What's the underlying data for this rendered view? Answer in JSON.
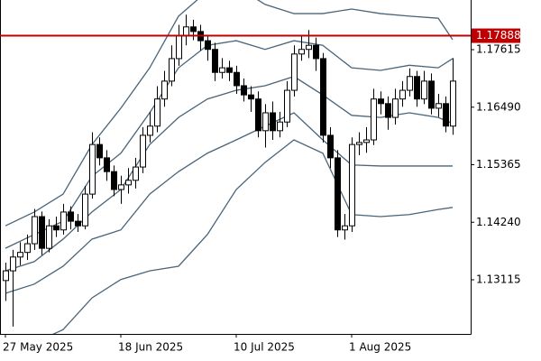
{
  "chart_data": {
    "type": "candlestick",
    "categories": [
      "27 May 2025",
      null,
      null,
      null,
      null,
      null,
      null,
      null,
      null,
      null,
      null,
      null,
      null,
      null,
      null,
      null,
      "18 Jun 2025",
      null,
      null,
      null,
      null,
      null,
      null,
      null,
      null,
      null,
      null,
      null,
      null,
      null,
      null,
      null,
      "10 Jul 2025",
      null,
      null,
      null,
      null,
      null,
      null,
      null,
      null,
      null,
      null,
      null,
      null,
      null,
      null,
      null,
      "1 Aug 2025",
      null,
      null,
      null,
      null,
      null,
      null,
      null,
      null,
      null,
      null,
      null,
      null,
      null,
      null
    ],
    "open": [
      1.131,
      1.1329,
      1.1356,
      1.1365,
      1.1382,
      1.1435,
      1.1373,
      1.1417,
      1.1409,
      1.1444,
      1.1426,
      1.1417,
      1.1479,
      1.1576,
      1.155,
      1.1523,
      1.1488,
      1.1497,
      1.1506,
      1.1532,
      1.1594,
      1.1612,
      1.1665,
      1.17,
      1.1744,
      1.1788,
      1.1806,
      1.1797,
      1.1779,
      1.1762,
      1.1717,
      1.1726,
      1.1717,
      1.1691,
      1.1673,
      1.1665,
      1.1603,
      1.1638,
      1.1603,
      1.162,
      1.1682,
      1.1753,
      1.1762,
      1.177,
      1.1744,
      1.1594,
      1.155,
      1.1409,
      1.1417,
      1.1576,
      1.158,
      1.1585,
      1.1665,
      1.1656,
      1.1629,
      1.1665,
      1.1682,
      1.1709,
      1.1665,
      1.17,
      1.1647,
      1.1656,
      1.1612
    ],
    "high": [
      1.1345,
      1.137,
      1.1385,
      1.14,
      1.145,
      1.1445,
      1.143,
      1.1435,
      1.146,
      1.1455,
      1.144,
      1.1495,
      1.16,
      1.159,
      1.1565,
      1.1535,
      1.1515,
      1.153,
      1.155,
      1.161,
      1.164,
      1.169,
      1.172,
      1.177,
      1.181,
      1.183,
      1.182,
      1.181,
      1.179,
      1.1775,
      1.1745,
      1.174,
      1.173,
      1.1705,
      1.169,
      1.168,
      1.1655,
      1.166,
      1.164,
      1.17,
      1.177,
      1.179,
      1.18,
      1.1785,
      1.1755,
      1.161,
      1.1565,
      1.144,
      1.159,
      1.16,
      1.161,
      1.1685,
      1.168,
      1.167,
      1.1685,
      1.17,
      1.1725,
      1.172,
      1.172,
      1.1715,
      1.1675,
      1.167,
      1.1745
    ],
    "low": [
      1.127,
      1.122,
      1.134,
      1.135,
      1.137,
      1.136,
      1.1365,
      1.1395,
      1.14,
      1.141,
      1.1405,
      1.141,
      1.147,
      1.1535,
      1.1505,
      1.1475,
      1.146,
      1.148,
      1.149,
      1.152,
      1.158,
      1.16,
      1.165,
      1.169,
      1.173,
      1.177,
      1.178,
      1.176,
      1.174,
      1.17,
      1.1705,
      1.17,
      1.1675,
      1.166,
      1.164,
      1.159,
      1.157,
      1.1585,
      1.159,
      1.161,
      1.167,
      1.174,
      1.1745,
      1.172,
      1.158,
      1.153,
      1.1395,
      1.139,
      1.1405,
      1.1555,
      1.156,
      1.1575,
      1.1635,
      1.1605,
      1.1615,
      1.165,
      1.167,
      1.165,
      1.1655,
      1.1635,
      1.163,
      1.16,
      1.1595
    ],
    "close": [
      1.1329,
      1.1356,
      1.1365,
      1.1382,
      1.1435,
      1.1373,
      1.1417,
      1.1409,
      1.1444,
      1.1426,
      1.1417,
      1.1479,
      1.1576,
      1.155,
      1.1523,
      1.1488,
      1.1497,
      1.1506,
      1.1532,
      1.1594,
      1.1612,
      1.1665,
      1.17,
      1.1744,
      1.1788,
      1.1806,
      1.1797,
      1.1779,
      1.1762,
      1.1717,
      1.1726,
      1.1717,
      1.1691,
      1.1673,
      1.1665,
      1.1603,
      1.1638,
      1.1603,
      1.162,
      1.1682,
      1.1753,
      1.1762,
      1.177,
      1.1744,
      1.1594,
      1.155,
      1.1409,
      1.1417,
      1.1576,
      1.158,
      1.1585,
      1.1665,
      1.1656,
      1.1629,
      1.1665,
      1.1682,
      1.1709,
      1.1665,
      1.17,
      1.1647,
      1.1656,
      1.1612,
      1.17
    ],
    "up_color": "#ffffff",
    "down_color": "#000000",
    "bands": [
      {
        "color": "#4a6478",
        "x": [
          0,
          4,
          8,
          12,
          16,
          20,
          24,
          28,
          32,
          36,
          40,
          44,
          48,
          52,
          56,
          60,
          62
        ],
        "values": [
          1.1417,
          1.1444,
          1.1479,
          1.1576,
          1.1647,
          1.1726,
          1.1827,
          1.1876,
          1.1885,
          1.185,
          1.1832,
          1.1832,
          1.1841,
          1.1832,
          1.1827,
          1.1823,
          1.1781
        ]
      },
      {
        "color": "#4a6478",
        "x": [
          0,
          4,
          8,
          12,
          16,
          20,
          24,
          28,
          32,
          36,
          40,
          44,
          48,
          52,
          56,
          60,
          62
        ],
        "values": [
          1.1373,
          1.14,
          1.1426,
          1.1514,
          1.1559,
          1.1638,
          1.1726,
          1.177,
          1.1779,
          1.1762,
          1.1779,
          1.177,
          1.1726,
          1.1721,
          1.1731,
          1.1726,
          1.1744
        ]
      },
      {
        "color": "#4a6478",
        "x": [
          0,
          4,
          8,
          12,
          16,
          20,
          24,
          28,
          32,
          36,
          40,
          44,
          48,
          52,
          56,
          60,
          62
        ],
        "values": [
          1.1329,
          1.1347,
          1.1391,
          1.1444,
          1.1488,
          1.1576,
          1.1629,
          1.1665,
          1.1682,
          1.1691,
          1.1709,
          1.1673,
          1.1633,
          1.1629,
          1.1638,
          1.1629,
          1.1617
        ]
      },
      {
        "color": "#4a6478",
        "x": [
          0,
          4,
          8,
          12,
          16,
          20,
          24,
          28,
          32,
          36,
          40,
          44,
          48,
          52,
          56,
          60,
          62
        ],
        "values": [
          1.1285,
          1.1303,
          1.1338,
          1.1391,
          1.1409,
          1.1479,
          1.1523,
          1.1559,
          1.1585,
          1.1612,
          1.1638,
          1.1585,
          1.1536,
          1.1534,
          1.1534,
          1.1534,
          1.1534
        ]
      },
      {
        "color": "#4a6478",
        "x": [
          0,
          4,
          8,
          12,
          16,
          20,
          24,
          28,
          32,
          36,
          40,
          44,
          48,
          52,
          56,
          60,
          62
        ],
        "values": [
          1.117,
          1.1188,
          1.1214,
          1.1276,
          1.1312,
          1.1329,
          1.1338,
          1.14,
          1.1488,
          1.1541,
          1.1585,
          1.1559,
          1.1439,
          1.1435,
          1.1439,
          1.1449,
          1.1453
        ]
      }
    ],
    "price_line": {
      "value": 1.17888,
      "color": "#c00000"
    },
    "ylim": [
      1.12056,
      1.18586
    ],
    "yticks": [
      1.13115,
      {
        "value": 1.1424,
        "label": "1.14240"
      },
      1.15365,
      {
        "value": 1.1649,
        "label": "1.16490"
      },
      1.17615
    ]
  }
}
